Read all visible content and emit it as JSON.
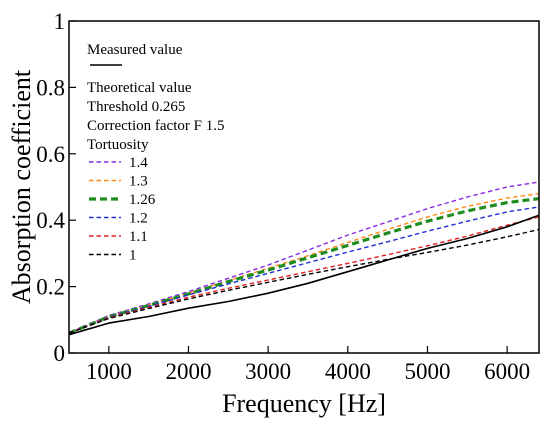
{
  "chart_data": {
    "type": "line",
    "xlabel": "Frequency [Hz]",
    "ylabel": "Absorption coefficient",
    "xlim": [
      500,
      6400
    ],
    "ylim": [
      0,
      1
    ],
    "x_ticks": [
      1000,
      2000,
      3000,
      4000,
      5000,
      6000
    ],
    "x_tick_labels": [
      "1000",
      "2000",
      "3000",
      "4000",
      "5000",
      "6000"
    ],
    "y_ticks": [
      0,
      0.2,
      0.4,
      0.6,
      0.8,
      1
    ],
    "y_tick_labels": [
      "0",
      "0.2",
      "0.4",
      "0.6",
      "0.8",
      "1"
    ],
    "grid": false,
    "legend_placement": "top-left",
    "legend": {
      "measured_label": "Measured value",
      "theoretical_label": "Theoretical value",
      "threshold_label": "Threshold 0.265",
      "correction_label": "Correction factor F 1.5",
      "tortuosity_label": "Tortuosity"
    },
    "x": [
      500,
      1000,
      1500,
      2000,
      2500,
      3000,
      3500,
      4000,
      4500,
      5000,
      5500,
      6000,
      6400
    ],
    "series": [
      {
        "name": "Measured value",
        "color": "#000000",
        "style": "solid",
        "values": [
          0.055,
          0.09,
          0.11,
          0.135,
          0.155,
          0.18,
          0.21,
          0.245,
          0.28,
          0.315,
          0.345,
          0.38,
          0.415
        ]
      },
      {
        "name": "1.4",
        "color": "#8a2be2",
        "style": "dashed",
        "values": [
          0.06,
          0.113,
          0.148,
          0.185,
          0.225,
          0.265,
          0.31,
          0.355,
          0.395,
          0.435,
          0.47,
          0.5,
          0.515
        ]
      },
      {
        "name": "1.3",
        "color": "#ff8c1a",
        "style": "dashed",
        "values": [
          0.06,
          0.11,
          0.145,
          0.18,
          0.218,
          0.255,
          0.293,
          0.333,
          0.372,
          0.41,
          0.442,
          0.467,
          0.48
        ]
      },
      {
        "name": "1.26",
        "color": "#1e8c1e",
        "style": "dashed-thick",
        "values": [
          0.06,
          0.109,
          0.143,
          0.178,
          0.215,
          0.25,
          0.287,
          0.324,
          0.361,
          0.397,
          0.428,
          0.453,
          0.465
        ]
      },
      {
        "name": "1.2",
        "color": "#1f2fd6",
        "style": "dashed",
        "values": [
          0.06,
          0.108,
          0.141,
          0.175,
          0.208,
          0.24,
          0.272,
          0.304,
          0.335,
          0.367,
          0.397,
          0.425,
          0.44
        ]
      },
      {
        "name": "1.1",
        "color": "#e02020",
        "style": "dashed",
        "values": [
          0.06,
          0.106,
          0.137,
          0.168,
          0.195,
          0.22,
          0.245,
          0.27,
          0.296,
          0.323,
          0.352,
          0.385,
          0.41
        ]
      },
      {
        "name": "1",
        "color": "#000000",
        "style": "dashed",
        "values": [
          0.06,
          0.104,
          0.134,
          0.163,
          0.189,
          0.213,
          0.237,
          0.26,
          0.282,
          0.303,
          0.325,
          0.35,
          0.372
        ]
      }
    ]
  }
}
